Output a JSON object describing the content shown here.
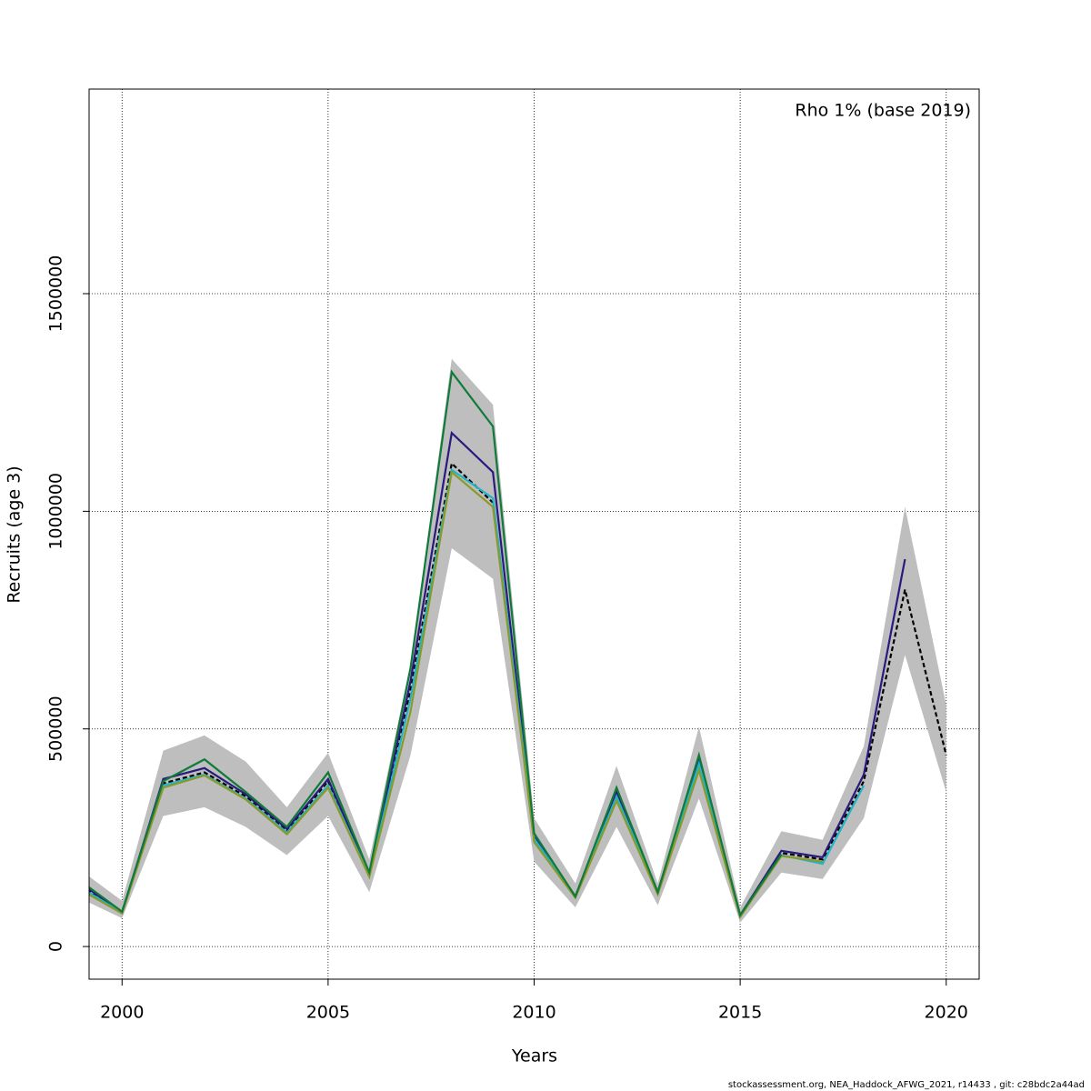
{
  "chart_data": {
    "type": "line",
    "annotation": "Rho 1% (base 2019)",
    "xlabel": "Years",
    "ylabel": "Recruits (age 3)",
    "footer": "stockassessment.org, NEA_Haddock_AFWG_2021, r14433 , git: c28bdc2a44ad",
    "x": [
      1999,
      2000,
      2001,
      2002,
      2003,
      2004,
      2005,
      2006,
      2007,
      2008,
      2009,
      2010,
      2011,
      2012,
      2013,
      2014,
      2015,
      2016,
      2017,
      2018,
      2019,
      2020
    ],
    "band": {
      "color": "#bebebe",
      "lower": [
        110000,
        65000,
        300000,
        320000,
        275000,
        210000,
        300000,
        125000,
        440000,
        915000,
        845000,
        195000,
        90000,
        275000,
        95000,
        340000,
        55000,
        170000,
        155000,
        295000,
        670000,
        355000
      ],
      "upper": [
        175000,
        105000,
        450000,
        485000,
        425000,
        320000,
        445000,
        200000,
        650000,
        1350000,
        1245000,
        295000,
        145000,
        415000,
        145000,
        505000,
        90000,
        265000,
        245000,
        460000,
        1010000,
        555000
      ]
    },
    "series": [
      {
        "color": "#000000",
        "dashed": true,
        "values": [
          140000,
          80000,
          375000,
          400000,
          345000,
          265000,
          380000,
          165000,
          590000,
          1110000,
          1020000,
          250000,
          115000,
          350000,
          125000,
          425000,
          70000,
          215000,
          200000,
          380000,
          820000,
          440000
        ]
      },
      {
        "color": "#2a1a80",
        "values": [
          145000,
          78000,
          385000,
          410000,
          350000,
          270000,
          385000,
          165000,
          610000,
          1180000,
          1090000,
          255000,
          115000,
          355000,
          125000,
          425000,
          72000,
          220000,
          205000,
          395000,
          890000,
          null
        ]
      },
      {
        "color": "#1fb4c8",
        "values": [
          135000,
          78000,
          370000,
          395000,
          340000,
          262000,
          370000,
          162000,
          570000,
          1095000,
          1030000,
          248000,
          113000,
          345000,
          122000,
          420000,
          68000,
          210000,
          190000,
          370000,
          null,
          null
        ]
      },
      {
        "color": "#8a9a2a",
        "values": [
          130000,
          76000,
          365000,
          393000,
          338000,
          258000,
          365000,
          160000,
          540000,
          1090000,
          1010000,
          240000,
          112000,
          335000,
          120000,
          405000,
          68000,
          208000,
          195000,
          null,
          null,
          null
        ]
      },
      {
        "color": "#117a3a",
        "values": [
          150000,
          80000,
          380000,
          430000,
          355000,
          275000,
          400000,
          170000,
          640000,
          1320000,
          1195000,
          260000,
          115000,
          365000,
          125000,
          440000,
          72000,
          212000,
          null,
          null,
          null,
          null
        ]
      }
    ],
    "xlim": [
      1999.2,
      2020.8
    ],
    "ylim": [
      -75000,
      1970000
    ],
    "xticks": [
      2000,
      2005,
      2010,
      2015,
      2020
    ],
    "yticks": [
      0,
      500000,
      1000000,
      1500000
    ],
    "grid": true
  }
}
